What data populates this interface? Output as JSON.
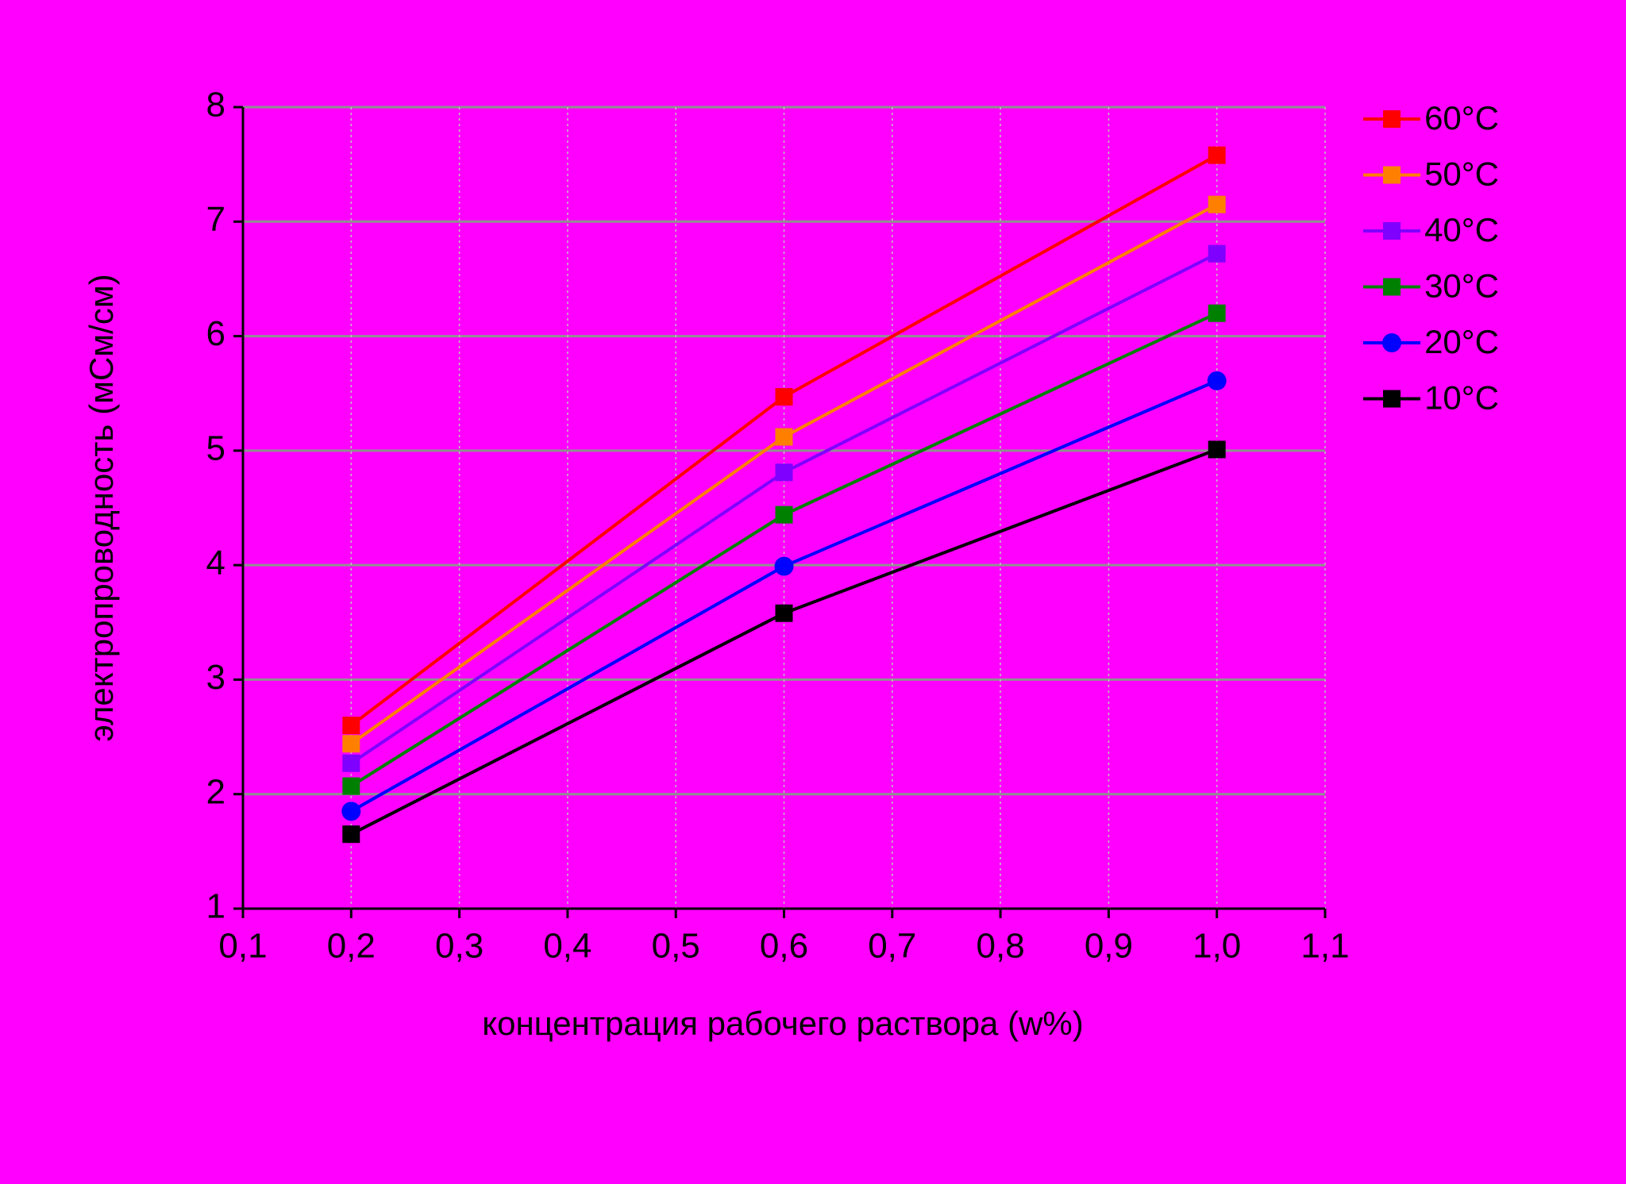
{
  "chart_data": {
    "type": "line",
    "x_label": "концентрация рабочего раствора (w%)",
    "y_label": "электропроводность (мСм/см)",
    "x": [
      0.2,
      0.6,
      1.0
    ],
    "xlim": [
      0.1,
      1.1
    ],
    "xticks": [
      {
        "value": 0.1,
        "label": "0,1"
      },
      {
        "value": 0.2,
        "label": "0,2"
      },
      {
        "value": 0.3,
        "label": "0,3"
      },
      {
        "value": 0.4,
        "label": "0,4"
      },
      {
        "value": 0.5,
        "label": "0,5"
      },
      {
        "value": 0.6,
        "label": "0,6"
      },
      {
        "value": 0.7,
        "label": "0,7"
      },
      {
        "value": 0.8,
        "label": "0,8"
      },
      {
        "value": 0.9,
        "label": "0,9"
      },
      {
        "value": 1.0,
        "label": "1,0"
      },
      {
        "value": 1.1,
        "label": "1,1"
      }
    ],
    "ylim": [
      1,
      8
    ],
    "yticks": [
      1,
      2,
      3,
      4,
      5,
      6,
      7,
      8
    ],
    "grid": true,
    "legend": "right",
    "series": [
      {
        "name": "60°C",
        "color": "#ff0000",
        "marker": "square",
        "values": [
          2.6,
          5.47,
          7.58
        ]
      },
      {
        "name": "50°C",
        "color": "#ff8000",
        "marker": "square",
        "values": [
          2.44,
          5.12,
          7.15
        ]
      },
      {
        "name": "40°C",
        "color": "#8000ff",
        "marker": "square",
        "values": [
          2.27,
          4.81,
          6.72
        ]
      },
      {
        "name": "30°C",
        "color": "#008000",
        "marker": "square",
        "values": [
          2.07,
          4.44,
          6.2
        ]
      },
      {
        "name": "20°C",
        "color": "#0000ff",
        "marker": "circle",
        "values": [
          1.85,
          3.99,
          5.61
        ]
      },
      {
        "name": "10°C",
        "color": "#000000",
        "marker": "square",
        "values": [
          1.65,
          3.58,
          5.01
        ]
      }
    ]
  }
}
